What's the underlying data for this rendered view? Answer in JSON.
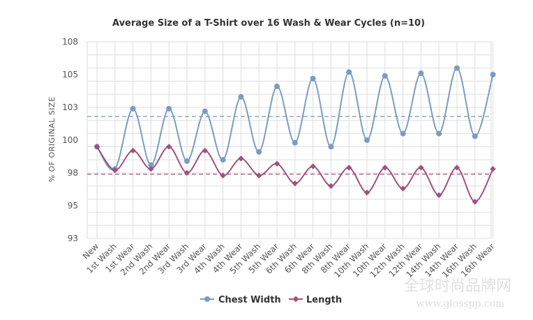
{
  "chart_data": {
    "type": "line",
    "title": "Average Size of a T-Shirt over 16 Wash & Wear Cycles (n=10)",
    "ylabel": "% OF ORIGINAL SIZE",
    "xlabel": "",
    "ylim": [
      93,
      108
    ],
    "yticks": [
      "93",
      "95",
      "98",
      "100",
      "103",
      "105",
      "108"
    ],
    "categories": [
      "New",
      "1st Wash",
      "1st Wear",
      "2nd Wash",
      "2nd Wear",
      "3rd Wash",
      "3rd Wear",
      "4th Wash",
      "4th Wear",
      "5th Wash",
      "5th Wear",
      "6th Wash",
      "6th Wear",
      "8th Wash",
      "8th Wear",
      "10th Wash",
      "10th Wear",
      "12th Wash",
      "12th Wear",
      "14th Wash",
      "14th Wear",
      "16th Wash",
      "16th Wear"
    ],
    "grid": true,
    "legend": "bottom-center",
    "series": [
      {
        "name": "Chest Width",
        "color": "#7a9cc2",
        "values": [
          100.0,
          98.3,
          102.9,
          98.6,
          102.9,
          98.9,
          102.7,
          99.0,
          103.8,
          99.6,
          104.6,
          100.3,
          105.2,
          100.0,
          105.7,
          100.5,
          105.4,
          101.0,
          105.6,
          101.0,
          106.0,
          100.8,
          105.5
        ]
      },
      {
        "name": "Length",
        "color": "#a0517f",
        "values": [
          100.0,
          98.2,
          99.7,
          98.3,
          100.0,
          98.0,
          99.7,
          97.8,
          99.1,
          97.8,
          98.7,
          97.2,
          98.5,
          97.0,
          98.4,
          96.5,
          98.4,
          96.8,
          98.4,
          96.3,
          98.4,
          95.8,
          98.3
        ]
      }
    ],
    "reference_lines": [
      {
        "value": 102.3,
        "color": "#7a9cc2",
        "style": "dashed"
      },
      {
        "value": 97.9,
        "color": "#a0517f",
        "style": "dashed"
      }
    ]
  },
  "watermark": {
    "line1": "全球时尚品牌网",
    "line2": "www.glosspp.com"
  }
}
